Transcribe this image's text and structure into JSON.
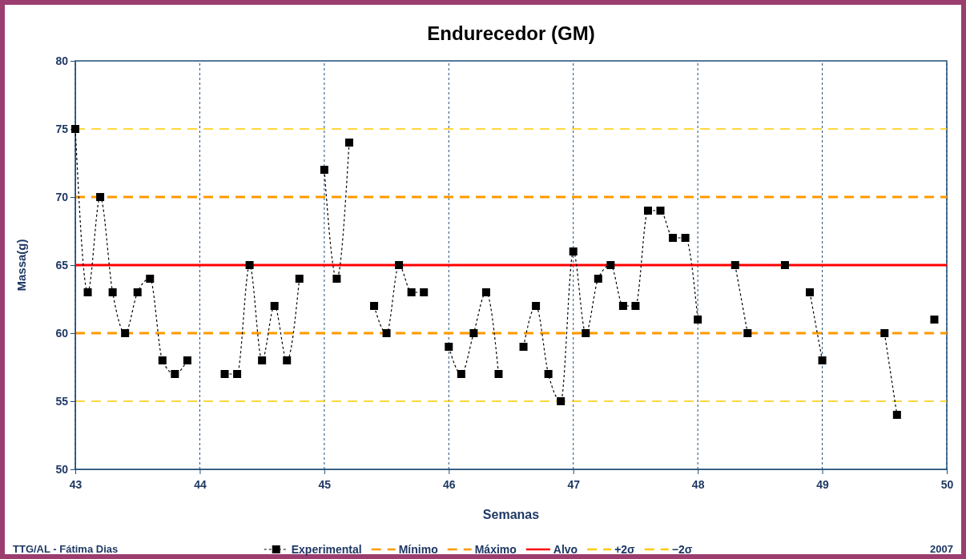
{
  "chart_data": {
    "type": "line",
    "title": "Endurecedor (GM)",
    "xlabel": "Semanas",
    "ylabel": "Massa(g)",
    "x": [
      43,
      43.1,
      43.2,
      43.3,
      43.4,
      43.5,
      43.6,
      43.7,
      43.8,
      43.9,
      44,
      44.1,
      44.2,
      44.3,
      44.4,
      44.5,
      44.6,
      44.7,
      44.8,
      44.9,
      45,
      45.1,
      45.2,
      45.3,
      45.4,
      45.5,
      45.6,
      45.7,
      45.8,
      45.9,
      46,
      46.1,
      46.2,
      46.3,
      46.4,
      46.5,
      46.6,
      46.7,
      46.8,
      46.9,
      47,
      47.1,
      47.2,
      47.3,
      47.4,
      47.5,
      47.6,
      47.7,
      47.8,
      47.9,
      48,
      48.1,
      48.2,
      48.3,
      48.4,
      48.5,
      48.6,
      48.7,
      48.8,
      48.9,
      49,
      49.1,
      49.2,
      49.3,
      49.4,
      49.5,
      49.6,
      49.7,
      49.8,
      49.9
    ],
    "series": [
      {
        "name": "Experimental",
        "color": "#000000",
        "marker": "square",
        "line_style": "dotted",
        "values": [
          75,
          63,
          70,
          63,
          60,
          63,
          64,
          58,
          57,
          58,
          null,
          null,
          57,
          57,
          65,
          58,
          62,
          58,
          64,
          null,
          72,
          64,
          74,
          null,
          62,
          60,
          65,
          63,
          63,
          null,
          59,
          57,
          60,
          63,
          57,
          null,
          59,
          62,
          57,
          55,
          66,
          60,
          64,
          65,
          62,
          62,
          69,
          69,
          67,
          67,
          61,
          null,
          null,
          65,
          60,
          null,
          null,
          65,
          null,
          63,
          58,
          null,
          null,
          null,
          null,
          60,
          54,
          null,
          null,
          61
        ]
      }
    ],
    "xlim": [
      43,
      50
    ],
    "xticks": [
      43,
      44,
      45,
      46,
      47,
      48,
      49,
      50
    ],
    "ylim": [
      50,
      80
    ],
    "yticks": [
      50,
      55,
      60,
      65,
      70,
      75,
      80
    ],
    "grid": "x",
    "legend": "bottom",
    "ref_lines": [
      {
        "axis": "y",
        "value": 60,
        "label": "Mínimo",
        "color": "#ff9900",
        "line_style": "dashed"
      },
      {
        "axis": "y",
        "value": 70,
        "label": "Máximo",
        "color": "#ff9900",
        "line_style": "dashed"
      },
      {
        "axis": "y",
        "value": 65,
        "label": "Alvo",
        "color": "#ff0000",
        "line_style": "solid"
      },
      {
        "axis": "y",
        "value": 75,
        "label": "+2σ",
        "color": "#ffcc00",
        "line_style": "dashed"
      },
      {
        "axis": "y",
        "value": 55,
        "label": "−2σ",
        "color": "#ffcc00",
        "line_style": "dashed"
      }
    ],
    "annotations": [
      "TTG/AL - Fátima Dias",
      "2007"
    ]
  }
}
